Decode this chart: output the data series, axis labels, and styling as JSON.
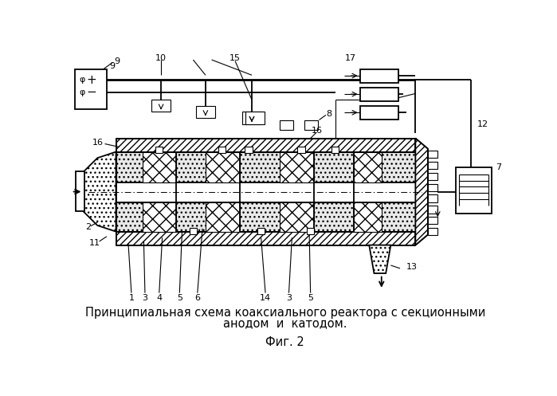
{
  "caption_line1": "Принципиальная схема коаксиального реактора с секционными",
  "caption_line2": "анодом  и  катодом.",
  "fig_label": "Фиг. 2",
  "bg_color": "#ffffff",
  "fg_color": "#000000",
  "fig_width": 6.99,
  "fig_height": 4.97,
  "dpi": 100
}
